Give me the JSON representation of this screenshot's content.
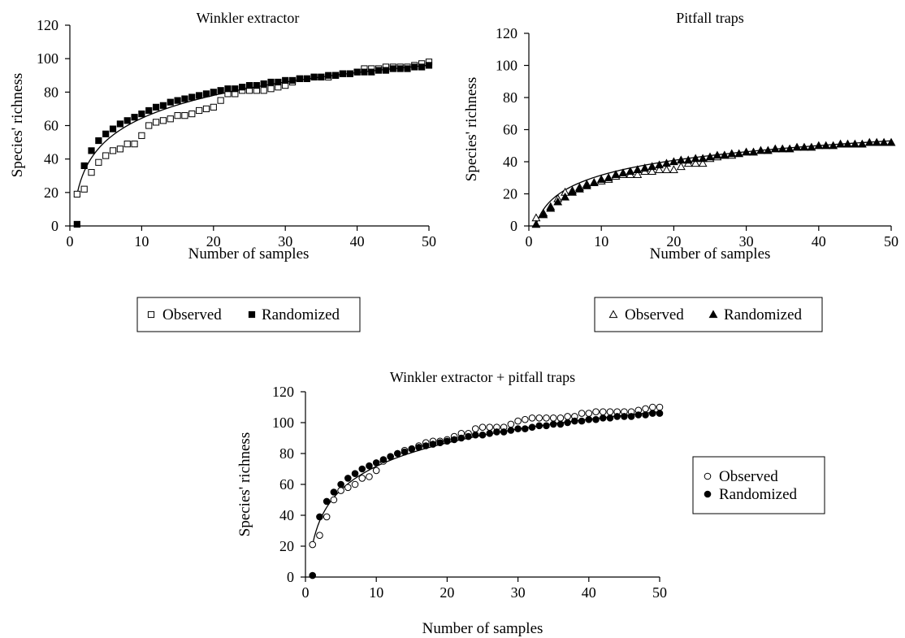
{
  "chart_data": [
    {
      "type": "scatter",
      "title": "Winkler extractor",
      "xlabel": "Number of samples",
      "ylabel": "Species' richness",
      "xlim": [
        0,
        50
      ],
      "ylim": [
        0,
        120
      ],
      "x_ticks": [
        "0",
        "10",
        "20",
        "30",
        "40",
        "50"
      ],
      "y_ticks": [
        "0",
        "20",
        "40",
        "60",
        "80",
        "100",
        "120"
      ],
      "legend_position": "bottom",
      "fit_curve": {
        "type": "logarithmic",
        "a": 19,
        "b": 19.7
      },
      "series": [
        {
          "name": "Observed",
          "marker": "open-square",
          "x": [
            1,
            2,
            3,
            4,
            5,
            6,
            7,
            8,
            9,
            10,
            11,
            12,
            13,
            14,
            15,
            16,
            17,
            18,
            19,
            20,
            21,
            22,
            23,
            24,
            25,
            26,
            27,
            28,
            29,
            30,
            31,
            32,
            33,
            34,
            35,
            36,
            37,
            38,
            39,
            40,
            41,
            42,
            43,
            44,
            45,
            46,
            47,
            48,
            49,
            50
          ],
          "y": [
            19,
            22,
            32,
            38,
            42,
            45,
            46,
            49,
            49,
            54,
            60,
            62,
            63,
            64,
            66,
            66,
            67,
            69,
            70,
            71,
            75,
            79,
            79,
            81,
            81,
            81,
            81,
            82,
            83,
            84,
            86,
            88,
            88,
            89,
            89,
            89,
            90,
            91,
            91,
            92,
            94,
            94,
            94,
            95,
            95,
            95,
            95,
            96,
            97,
            98
          ]
        },
        {
          "name": "Randomized",
          "marker": "filled-square",
          "x": [
            1,
            2,
            3,
            4,
            5,
            6,
            7,
            8,
            9,
            10,
            11,
            12,
            13,
            14,
            15,
            16,
            17,
            18,
            19,
            20,
            21,
            22,
            23,
            24,
            25,
            26,
            27,
            28,
            29,
            30,
            31,
            32,
            33,
            34,
            35,
            36,
            37,
            38,
            39,
            40,
            41,
            42,
            43,
            44,
            45,
            46,
            47,
            48,
            49,
            50
          ],
          "y": [
            1,
            36,
            45,
            51,
            55,
            58,
            61,
            63,
            65,
            67,
            69,
            71,
            72,
            74,
            75,
            76,
            77,
            78,
            79,
            80,
            81,
            82,
            82,
            83,
            84,
            84,
            85,
            86,
            86,
            87,
            87,
            88,
            88,
            89,
            89,
            90,
            90,
            91,
            91,
            92,
            92,
            92,
            93,
            93,
            94,
            94,
            94,
            95,
            95,
            96
          ]
        }
      ]
    },
    {
      "type": "scatter",
      "title": "Pitfall traps",
      "xlabel": "Number of samples",
      "ylabel": "Species' richness",
      "xlim": [
        0,
        50
      ],
      "ylim": [
        0,
        120
      ],
      "x_ticks": [
        "0",
        "10",
        "20",
        "30",
        "40",
        "50"
      ],
      "y_ticks": [
        "0",
        "20",
        "40",
        "60",
        "80",
        "100",
        "120"
      ],
      "legend_position": "bottom",
      "fit_curve": {
        "type": "logarithmic",
        "a": 1,
        "b": 13.3
      },
      "series": [
        {
          "name": "Observed",
          "marker": "open-triangle",
          "x": [
            1,
            2,
            3,
            4,
            5,
            6,
            7,
            8,
            9,
            10,
            11,
            12,
            13,
            14,
            15,
            16,
            17,
            18,
            19,
            20,
            21,
            22,
            23,
            24,
            25,
            26,
            27,
            28
          ],
          "y": [
            5,
            8,
            12,
            17,
            21,
            22,
            24,
            26,
            27,
            28,
            29,
            31,
            32,
            32,
            32,
            34,
            34,
            35,
            35,
            35,
            37,
            39,
            39,
            39,
            42,
            43,
            44,
            44
          ]
        },
        {
          "name": "Randomized",
          "marker": "filled-triangle",
          "x": [
            1,
            2,
            3,
            4,
            5,
            6,
            7,
            8,
            9,
            10,
            11,
            12,
            13,
            14,
            15,
            16,
            17,
            18,
            19,
            20,
            21,
            22,
            23,
            24,
            25,
            26,
            27,
            28,
            29,
            30,
            31,
            32,
            33,
            34,
            35,
            36,
            37,
            38,
            39,
            40,
            41,
            42,
            43,
            44,
            45,
            46,
            47,
            48,
            49,
            50
          ],
          "y": [
            1,
            7,
            11,
            15,
            18,
            21,
            23,
            25,
            27,
            29,
            30,
            32,
            33,
            34,
            35,
            36,
            37,
            38,
            39,
            40,
            41,
            41,
            42,
            42,
            43,
            44,
            44,
            45,
            45,
            46,
            46,
            47,
            47,
            48,
            48,
            48,
            49,
            49,
            49,
            50,
            50,
            50,
            51,
            51,
            51,
            51,
            52,
            52,
            52,
            52
          ]
        }
      ]
    },
    {
      "type": "scatter",
      "title": "Winkler extractor + pitfall traps",
      "xlabel": "Number of samples",
      "ylabel": "Species' richness",
      "xlim": [
        0,
        50
      ],
      "ylim": [
        0,
        120
      ],
      "x_ticks": [
        "0",
        "10",
        "20",
        "30",
        "40",
        "50"
      ],
      "y_ticks": [
        "0",
        "20",
        "40",
        "60",
        "80",
        "100",
        "120"
      ],
      "legend_position": "right",
      "fit_curve": {
        "type": "logarithmic",
        "a": 21,
        "b": 22
      },
      "series": [
        {
          "name": "Observed",
          "marker": "open-circle",
          "x": [
            1,
            2,
            3,
            4,
            5,
            6,
            7,
            8,
            9,
            10,
            11,
            12,
            13,
            14,
            15,
            16,
            17,
            18,
            19,
            20,
            21,
            22,
            23,
            24,
            25,
            26,
            27,
            28,
            29,
            30,
            31,
            32,
            33,
            34,
            35,
            36,
            37,
            38,
            39,
            40,
            41,
            42,
            43,
            44,
            45,
            46,
            47,
            48,
            49,
            50
          ],
          "y": [
            21,
            27,
            39,
            50,
            56,
            58,
            60,
            64,
            65,
            69,
            75,
            78,
            80,
            82,
            83,
            85,
            87,
            88,
            88,
            89,
            91,
            93,
            93,
            96,
            97,
            97,
            97,
            97,
            99,
            101,
            102,
            103,
            103,
            103,
            103,
            103,
            104,
            104,
            106,
            106,
            107,
            107,
            107,
            107,
            107,
            107,
            108,
            109,
            110,
            110
          ]
        },
        {
          "name": "Randomized",
          "marker": "filled-circle",
          "x": [
            1,
            2,
            3,
            4,
            5,
            6,
            7,
            8,
            9,
            10,
            11,
            12,
            13,
            14,
            15,
            16,
            17,
            18,
            19,
            20,
            21,
            22,
            23,
            24,
            25,
            26,
            27,
            28,
            29,
            30,
            31,
            32,
            33,
            34,
            35,
            36,
            37,
            38,
            39,
            40,
            41,
            42,
            43,
            44,
            45,
            46,
            47,
            48,
            49,
            50
          ],
          "y": [
            1,
            39,
            49,
            55,
            60,
            64,
            67,
            70,
            72,
            74,
            76,
            78,
            80,
            81,
            83,
            84,
            85,
            86,
            87,
            88,
            89,
            90,
            91,
            92,
            92,
            93,
            94,
            94,
            95,
            96,
            96,
            97,
            98,
            98,
            99,
            99,
            100,
            101,
            101,
            102,
            102,
            103,
            103,
            104,
            104,
            104,
            105,
            105,
            106,
            106
          ]
        }
      ]
    }
  ]
}
